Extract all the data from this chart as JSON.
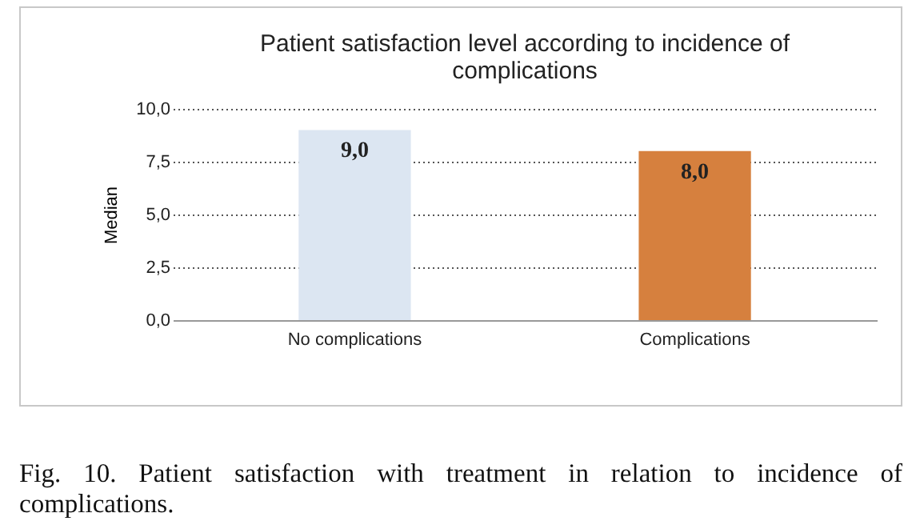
{
  "chart_data": {
    "type": "bar",
    "title": [
      "Patient satisfaction level according to incidence of",
      "complications"
    ],
    "ylabel": "Median",
    "categories": [
      "No complications",
      "Complications"
    ],
    "values": [
      9.0,
      8.0
    ],
    "colors": [
      "#dce6f2",
      "#d6803e"
    ],
    "value_labels": [
      "9,0",
      "8,0"
    ],
    "ylim": [
      0,
      10
    ],
    "yticks": [
      {
        "value": 0,
        "label": "0,0"
      },
      {
        "value": 2.5,
        "label": "2,5"
      },
      {
        "value": 5,
        "label": "5,0"
      },
      {
        "value": 7.5,
        "label": "7,5"
      },
      {
        "value": 10,
        "label": "10,0"
      }
    ],
    "grid": "y",
    "annotations": [
      "Fig. 10. Patient satisfaction with treatment in relation to incidence of complications."
    ]
  }
}
